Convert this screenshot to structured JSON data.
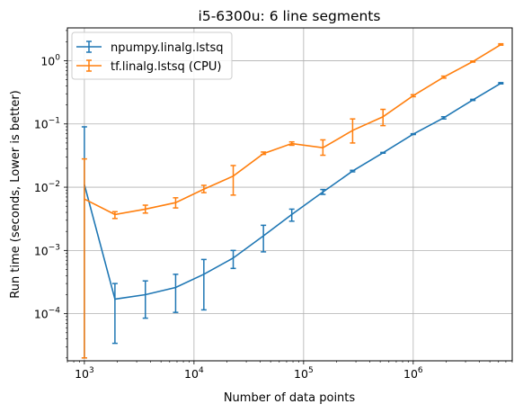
{
  "chart_data": {
    "type": "line",
    "title": "i5-6300u: 6 line segments",
    "xlabel": "Number of data points",
    "ylabel": "Run time (seconds, Lower is better)",
    "xscale": "log",
    "yscale": "log",
    "xlim": [
      700,
      8000000
    ],
    "ylim": [
      1.8e-05,
      3.3
    ],
    "x_ticks": [
      {
        "value": 1000,
        "base": "10",
        "exp": "3"
      },
      {
        "value": 10000,
        "base": "10",
        "exp": "4"
      },
      {
        "value": 100000,
        "base": "10",
        "exp": "5"
      },
      {
        "value": 1000000,
        "base": "10",
        "exp": "6"
      }
    ],
    "y_ticks": [
      {
        "value": 0.0001,
        "base": "10",
        "exp": "−4"
      },
      {
        "value": 0.001,
        "base": "10",
        "exp": "−3"
      },
      {
        "value": 0.01,
        "base": "10",
        "exp": "−2"
      },
      {
        "value": 0.1,
        "base": "10",
        "exp": "−1"
      },
      {
        "value": 1,
        "base": "10",
        "exp": "0"
      }
    ],
    "grid": true,
    "legend_position": "top-left",
    "series": [
      {
        "name": "npumpy.linalg.lstsq",
        "color": "#1f77b4",
        "x": [
          1000,
          1900,
          3600,
          6800,
          12300,
          22800,
          43000,
          78000,
          150000,
          280000,
          530000,
          1000000,
          1900000,
          3500000,
          6300000
        ],
        "y": [
          0.011,
          0.00017,
          0.0002,
          0.00026,
          0.00042,
          0.00076,
          0.0017,
          0.0037,
          0.0084,
          0.018,
          0.035,
          0.069,
          0.125,
          0.24,
          0.44
        ],
        "err_low": [
          2e-05,
          3.4e-05,
          8.5e-05,
          0.000105,
          0.000115,
          0.00052,
          0.00095,
          0.0029,
          0.0077,
          0.0175,
          0.0345,
          0.068,
          0.12,
          0.235,
          0.43
        ],
        "err_high": [
          0.09,
          0.0003,
          0.00033,
          0.00042,
          0.00072,
          0.001,
          0.0025,
          0.0045,
          0.0092,
          0.0185,
          0.0355,
          0.07,
          0.13,
          0.245,
          0.45
        ]
      },
      {
        "name": "tf.linalg.lstsq (CPU)",
        "color": "#ff7f0e",
        "x": [
          1000,
          1900,
          3600,
          6800,
          12300,
          22800,
          43000,
          78000,
          150000,
          280000,
          530000,
          1000000,
          1900000,
          3500000,
          6300000
        ],
        "y": [
          0.0065,
          0.0037,
          0.0045,
          0.0057,
          0.0093,
          0.015,
          0.034,
          0.049,
          0.042,
          0.079,
          0.13,
          0.28,
          0.55,
          0.97,
          1.8
        ],
        "err_low": [
          2e-05,
          0.0032,
          0.0039,
          0.0047,
          0.0082,
          0.0075,
          0.033,
          0.046,
          0.032,
          0.05,
          0.094,
          0.27,
          0.53,
          0.95,
          1.76
        ],
        "err_high": [
          0.028,
          0.0041,
          0.0052,
          0.0068,
          0.0107,
          0.022,
          0.036,
          0.052,
          0.056,
          0.12,
          0.17,
          0.29,
          0.57,
          0.99,
          1.85
        ]
      }
    ]
  }
}
